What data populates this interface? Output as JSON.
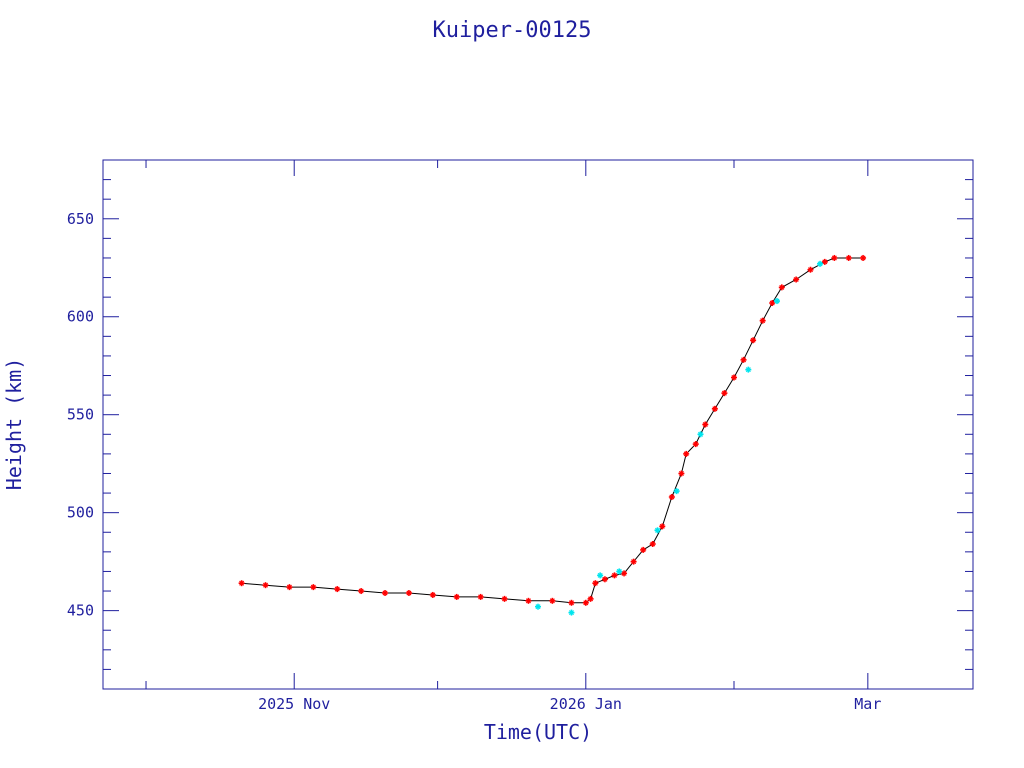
{
  "chart_data": {
    "type": "scatter",
    "title": "Kuiper-00125",
    "xlabel": "Time(UTC)",
    "ylabel": "Height (km)",
    "xlim": [
      "2025-09-22",
      "2026-03-23"
    ],
    "ylim": [
      410,
      680
    ],
    "x_ticks": [
      {
        "date": "2025-11-01",
        "label": "2025 Nov"
      },
      {
        "date": "2026-01-01",
        "label": "2026 Jan"
      },
      {
        "date": "2026-03-01",
        "label": "Mar"
      }
    ],
    "y_ticks": [
      450,
      500,
      550,
      600,
      650
    ],
    "grid": false,
    "colors": {
      "axis": "#1f1f9e",
      "series_main": "#ff0000",
      "series_alt": "#00e5ee",
      "line": "#000000"
    },
    "series": [
      {
        "marker_color": "#ff0000",
        "points": [
          [
            "2025-10-21",
            464
          ],
          [
            "2025-10-26",
            463
          ],
          [
            "2025-10-31",
            462
          ],
          [
            "2025-11-05",
            462
          ],
          [
            "2025-11-10",
            461
          ],
          [
            "2025-11-15",
            460
          ],
          [
            "2025-11-20",
            459
          ],
          [
            "2025-11-25",
            459
          ],
          [
            "2025-11-30",
            458
          ],
          [
            "2025-12-05",
            457
          ],
          [
            "2025-12-10",
            457
          ],
          [
            "2025-12-15",
            456
          ],
          [
            "2025-12-20",
            455
          ],
          [
            "2025-12-25",
            455
          ],
          [
            "2025-12-29",
            454
          ],
          [
            "2026-01-01",
            454
          ],
          [
            "2026-01-02",
            456
          ],
          [
            "2026-01-03",
            464
          ],
          [
            "2026-01-05",
            466
          ],
          [
            "2026-01-07",
            468
          ],
          [
            "2026-01-09",
            469
          ],
          [
            "2026-01-11",
            475
          ],
          [
            "2026-01-13",
            481
          ],
          [
            "2026-01-15",
            484
          ],
          [
            "2026-01-17",
            493
          ],
          [
            "2026-01-19",
            508
          ],
          [
            "2026-01-21",
            520
          ],
          [
            "2026-01-22",
            530
          ],
          [
            "2026-01-24",
            535
          ],
          [
            "2026-01-26",
            545
          ],
          [
            "2026-01-28",
            553
          ],
          [
            "2026-01-30",
            561
          ],
          [
            "2026-02-01",
            569
          ],
          [
            "2026-02-03",
            578
          ],
          [
            "2026-02-05",
            588
          ],
          [
            "2026-02-07",
            598
          ],
          [
            "2026-02-09",
            607
          ],
          [
            "2026-02-11",
            615
          ],
          [
            "2026-02-14",
            619
          ],
          [
            "2026-02-17",
            624
          ],
          [
            "2026-02-20",
            628
          ],
          [
            "2026-02-22",
            630
          ],
          [
            "2026-02-25",
            630
          ],
          [
            "2026-02-28",
            630
          ]
        ]
      },
      {
        "marker_color": "#00e5ee",
        "points": [
          [
            "2025-12-22",
            452
          ],
          [
            "2025-12-29",
            449
          ],
          [
            "2026-01-04",
            468
          ],
          [
            "2026-01-08",
            470
          ],
          [
            "2026-01-16",
            491
          ],
          [
            "2026-01-20",
            511
          ],
          [
            "2026-01-25",
            540
          ],
          [
            "2026-02-04",
            573
          ],
          [
            "2026-02-10",
            608
          ],
          [
            "2026-02-19",
            627
          ]
        ]
      }
    ]
  }
}
